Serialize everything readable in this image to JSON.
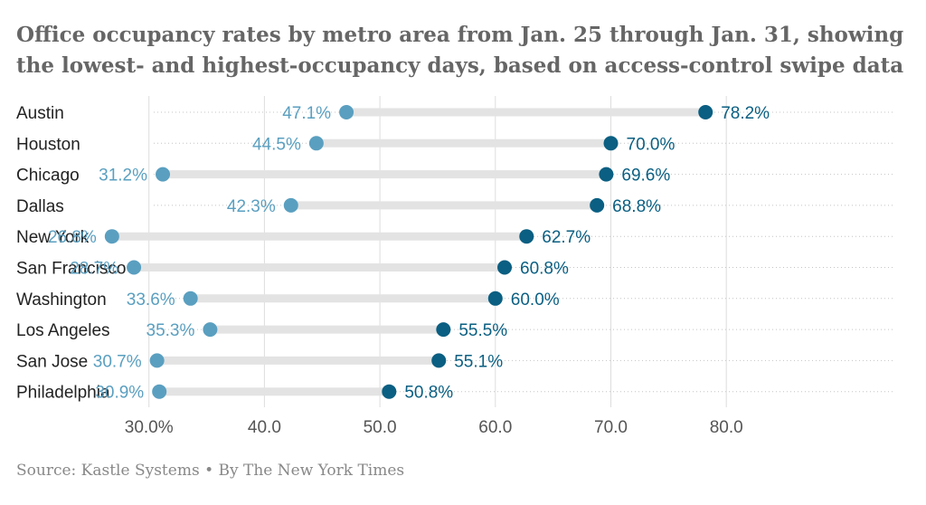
{
  "title": "Office occupancy rates by metro area from Jan. 25 through Jan. 31, showing the lowest- and highest-occupancy days, based on access-control swipe data",
  "source": "Source:  Kastle Systems • By The New York Times",
  "colors": {
    "low": "#5a9fc0",
    "high": "#0a5f82",
    "track": "#e3e3e3",
    "grid": "#dddddd"
  },
  "chart_data": {
    "type": "dumbbell",
    "categories": [
      "Austin",
      "Houston",
      "Chicago",
      "Dallas",
      "New York",
      "San Francisco",
      "Washington",
      "Los Angeles",
      "San Jose",
      "Philadelphia"
    ],
    "series": [
      {
        "name": "lowest",
        "values": [
          47.1,
          44.5,
          31.2,
          42.3,
          26.8,
          28.7,
          33.6,
          35.3,
          30.7,
          30.9
        ]
      },
      {
        "name": "highest",
        "values": [
          78.2,
          70.0,
          69.6,
          68.8,
          62.7,
          60.8,
          60.0,
          55.5,
          55.1,
          50.8
        ]
      }
    ],
    "value_suffix": "%",
    "xlim": [
      20,
      83
    ],
    "xticks": [
      30,
      40,
      50,
      60,
      70,
      80
    ],
    "xtick_labels": [
      "30.0%",
      "40.0",
      "50.0",
      "60.0",
      "70.0",
      "80.0"
    ],
    "grid": true
  }
}
